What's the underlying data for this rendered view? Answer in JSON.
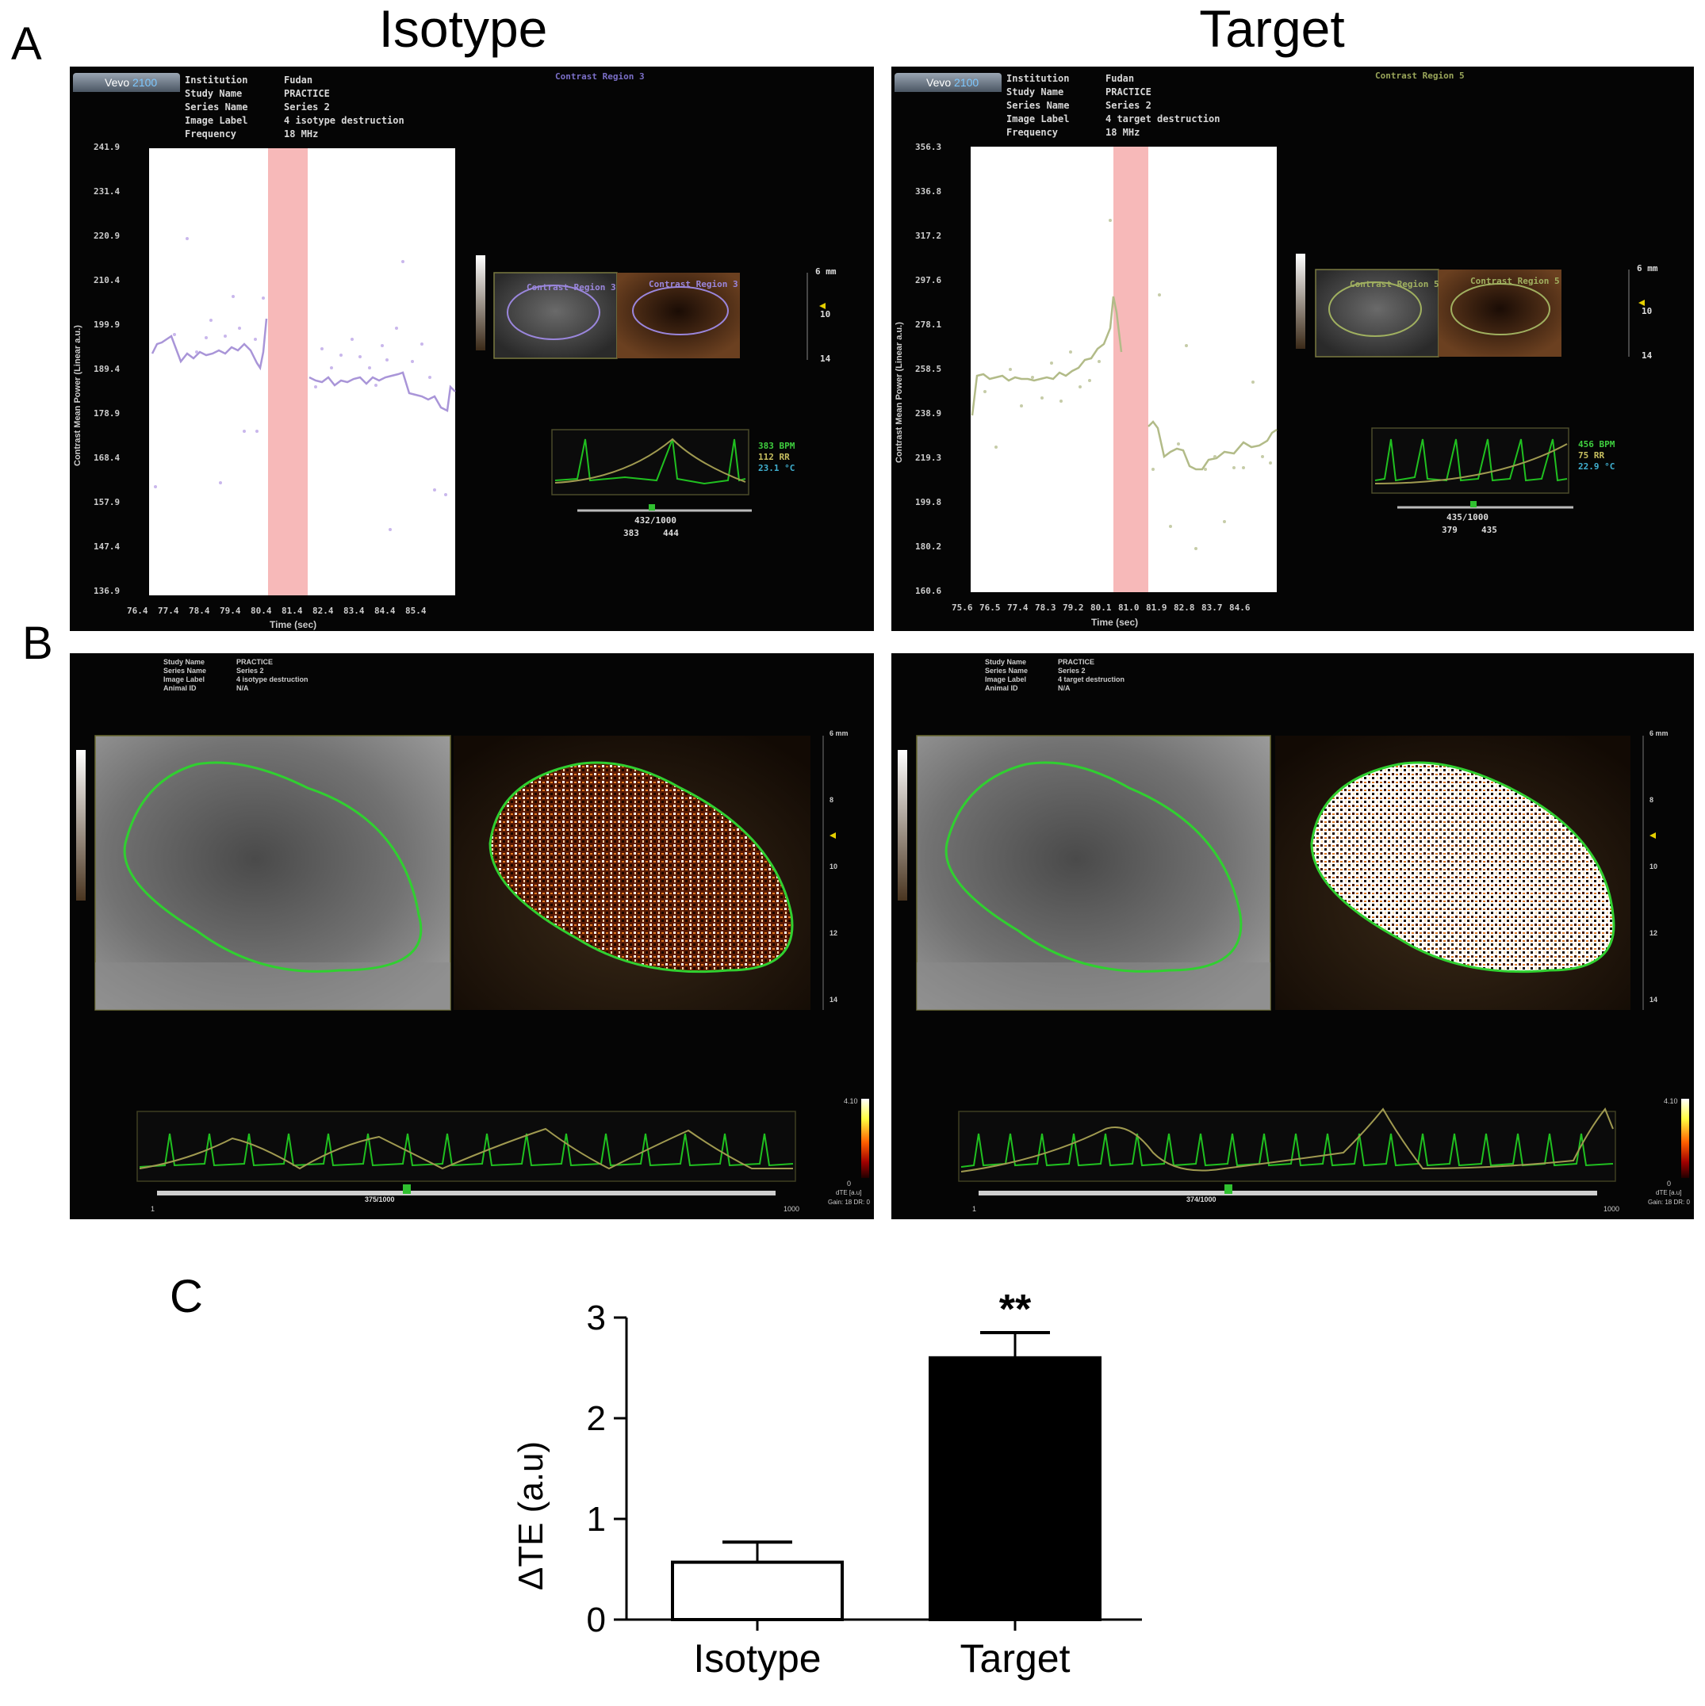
{
  "figure": {
    "panel_a": "A",
    "panel_b": "B",
    "panel_c": "C",
    "col_isotype": "Isotype",
    "col_target": "Target"
  },
  "left_screen": {
    "vevo": "Vevo",
    "vevo_model": "2100",
    "info_keys": [
      "Institution",
      "Study Name",
      "Series Name",
      "Image Label",
      "Frequency"
    ],
    "info_vals": [
      "Fudan",
      "PRACTICE",
      "Series 2",
      "4 isotype destruction",
      "18 MHz"
    ],
    "region_title": "Contrast Region 3",
    "region_color": "#7b6fc8",
    "y_axis_label": "Contrast Mean Power (Linear a.u.)",
    "x_axis_label": "Time (sec)",
    "y_ticks": [
      "241.9",
      "231.4",
      "220.9",
      "210.4",
      "199.9",
      "189.4",
      "178.9",
      "168.4",
      "157.9",
      "147.4",
      "136.9"
    ],
    "x_ticks": [
      "76.4",
      "77.4",
      "78.4",
      "79.4",
      "80.4",
      "81.4",
      "82.4",
      "83.4",
      "84.4",
      "85.4"
    ],
    "roi_label_1": "Contrast Region 3",
    "roi_label_2": "Contrast Region 3",
    "ecg_vals": [
      "383 BPM",
      "112 RR",
      "23.1 °C"
    ],
    "frame": "432/1000",
    "frame_range": [
      "383",
      "444"
    ],
    "depth_ticks": [
      "6 mm",
      "10",
      "14"
    ]
  },
  "right_screen": {
    "vevo": "Vevo",
    "vevo_model": "2100",
    "info_keys": [
      "Institution",
      "Study Name",
      "Series Name",
      "Image Label",
      "Frequency"
    ],
    "info_vals": [
      "Fudan",
      "PRACTICE",
      "Series 2",
      "4 target destruction",
      "18 MHz"
    ],
    "region_title": "Contrast Region 5",
    "region_color": "#9aa65a",
    "y_axis_label": "Contrast Mean Power (Linear a.u.)",
    "x_axis_label": "Time (sec)",
    "y_ticks": [
      "356.3",
      "336.8",
      "317.2",
      "297.6",
      "278.1",
      "258.5",
      "238.9",
      "219.3",
      "199.8",
      "180.2",
      "160.6"
    ],
    "x_ticks": [
      "75.6",
      "76.5",
      "77.4",
      "78.3",
      "79.2",
      "80.1",
      "81.0",
      "81.9",
      "82.8",
      "83.7",
      "84.6"
    ],
    "roi_label_1": "Contrast Region 5",
    "roi_label_2": "Contrast Region 5",
    "ecg_vals": [
      "456 BPM",
      "75 RR",
      "22.9 °C"
    ],
    "frame": "435/1000",
    "frame_range": [
      "379",
      "435"
    ],
    "depth_ticks": [
      "6 mm",
      "10",
      "14"
    ]
  },
  "b_left": {
    "info_keys": [
      "Study Name",
      "Series Name",
      "Image Label",
      "Animal ID"
    ],
    "info_vals": [
      "PRACTICE",
      "Series 2",
      "4 isotype destruction",
      "N/A"
    ],
    "depth_ticks": [
      "6 mm",
      "8",
      "10",
      "12",
      "14"
    ],
    "frame": "375/1000",
    "timeline_start": "1",
    "timeline_end": "1000",
    "cbar_top": "4.10",
    "cbar_bottom": "0",
    "cbar_unit": "dTE [a.u]",
    "gain": "Gain: 18  DR: 0"
  },
  "b_right": {
    "info_keys": [
      "Study Name",
      "Series Name",
      "Image Label",
      "Animal ID"
    ],
    "info_vals": [
      "PRACTICE",
      "Series 2",
      "4 target destruction",
      "N/A"
    ],
    "depth_ticks": [
      "6 mm",
      "8",
      "10",
      "12",
      "14"
    ],
    "frame": "374/1000",
    "timeline_start": "1",
    "timeline_end": "1000",
    "cbar_top": "4.10",
    "cbar_bottom": "0",
    "cbar_unit": "dTE [a.u]",
    "gain": "Gain: 18  DR: 0"
  },
  "chart_data": {
    "type": "bar",
    "categories": [
      "Isotype",
      "Target"
    ],
    "values": [
      0.57,
      2.6
    ],
    "errors": [
      0.2,
      0.25
    ],
    "colors": [
      "#ffffff",
      "#000000"
    ],
    "significance": [
      "",
      "**"
    ],
    "ylabel": "ΔTE (a.u)",
    "ylim": [
      0,
      3
    ],
    "yticks": [
      "0",
      "1",
      "2",
      "3"
    ],
    "grid": false
  }
}
